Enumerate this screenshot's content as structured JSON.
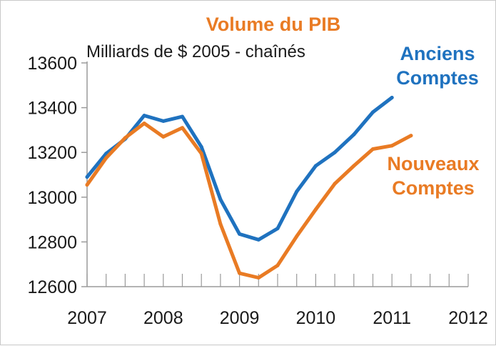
{
  "chart_data": {
    "type": "line",
    "title": "Volume du PIB",
    "subtitle": "Milliards de  $ 2005 - chaînés",
    "xlabel": "",
    "ylabel": "",
    "xlim": [
      2007,
      2012
    ],
    "ylim": [
      12600,
      13600
    ],
    "x_ticks": [
      "2007",
      "2008",
      "2009",
      "2010",
      "2011",
      "2012"
    ],
    "y_ticks": [
      "12600",
      "12800",
      "13000",
      "13200",
      "13400",
      "13600"
    ],
    "grid": false,
    "colors": {
      "title": "#e97b24",
      "axis": "#9a9a9a",
      "text": "#1a1a1a"
    },
    "series": [
      {
        "name_lines": [
          "Anciens",
          "Comptes"
        ],
        "color": "#1f72bf",
        "x": [
          2007.0,
          2007.25,
          2007.5,
          2007.75,
          2008.0,
          2008.25,
          2008.5,
          2008.75,
          2009.0,
          2009.25,
          2009.5,
          2009.75,
          2010.0,
          2010.25,
          2010.5,
          2010.75,
          2011.0
        ],
        "y": [
          13090,
          13195,
          13260,
          13365,
          13340,
          13360,
          13225,
          12990,
          12835,
          12810,
          12860,
          13025,
          13140,
          13200,
          13280,
          13380,
          13445
        ]
      },
      {
        "name_lines": [
          "Nouveaux",
          "Comptes"
        ],
        "color": "#e97b24",
        "x": [
          2007.0,
          2007.25,
          2007.5,
          2007.75,
          2008.0,
          2008.25,
          2008.5,
          2008.75,
          2009.0,
          2009.25,
          2009.5,
          2009.75,
          2010.0,
          2010.25,
          2010.5,
          2010.75,
          2011.0,
          2011.25
        ],
        "y": [
          13055,
          13175,
          13265,
          13330,
          13270,
          13310,
          13195,
          12880,
          12660,
          12640,
          12695,
          12825,
          12945,
          13060,
          13140,
          13215,
          13230,
          13275
        ]
      }
    ]
  }
}
